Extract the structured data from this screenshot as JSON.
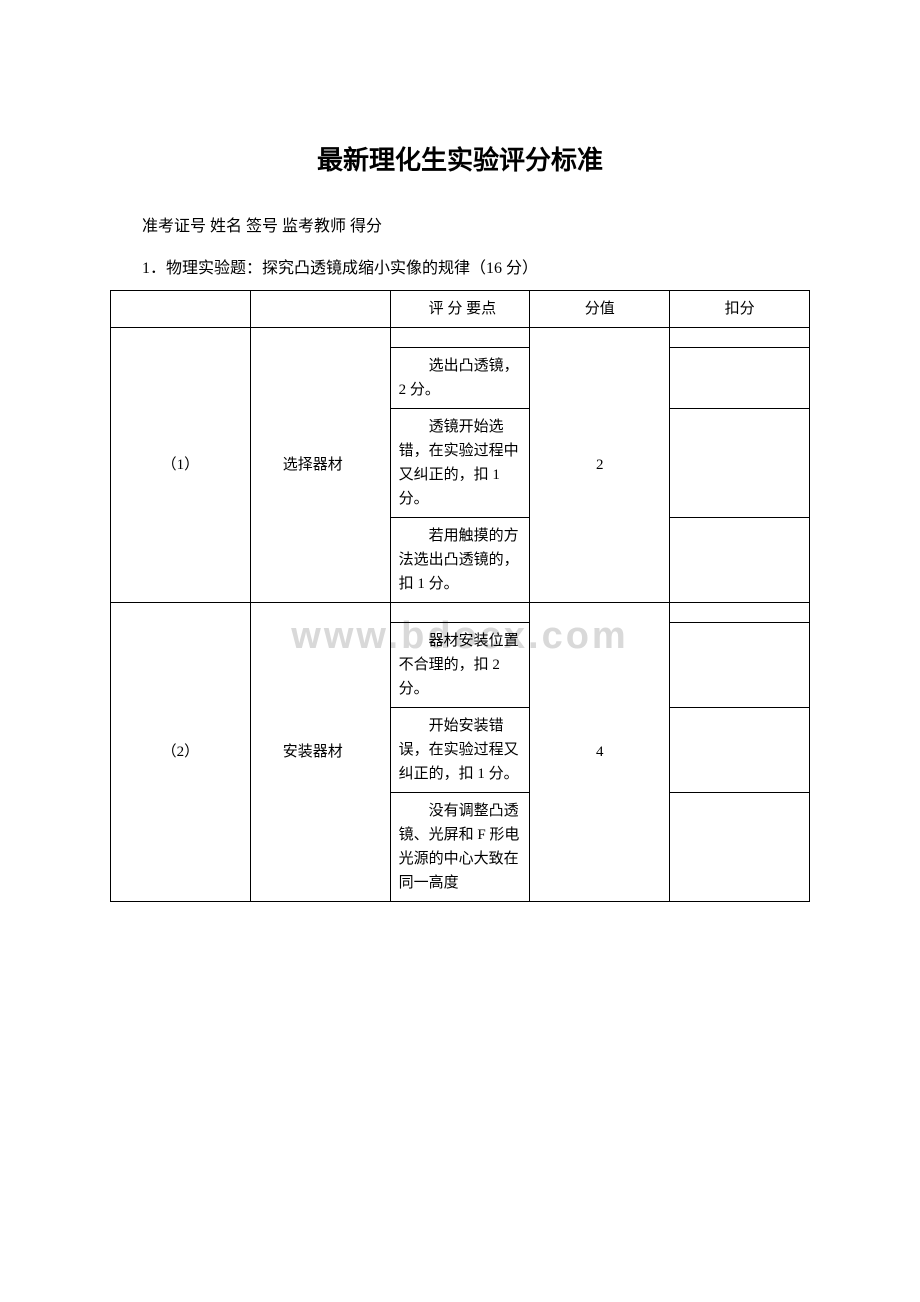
{
  "page": {
    "title": "最新理化生实验评分标准",
    "info_line": "准考证号 姓名 签号 监考教师 得分",
    "subtitle": "1．物理实验题：探究凸透镜成缩小实像的规律（16 分）",
    "watermark": "www.bdocx.com"
  },
  "table": {
    "header": {
      "col3": "评 分 要点",
      "col4": "分值",
      "col5": "扣分"
    },
    "rows": {
      "g1": {
        "num": "（1）",
        "label": "选择器材",
        "score": "2",
        "r1": "选出凸透镜，2 分。",
        "r2": "透镜开始选错，在实验过程中又纠正的，扣 1 分。",
        "r3": "若用触摸的方法选出凸透镜的，扣 1 分。"
      },
      "g2": {
        "num": "（2）",
        "label": "安装器材",
        "score": "4",
        "r1": "器材安装位置不合理的，扣 2分。",
        "r2": "开始安装错误，在实验过程又纠正的，扣 1 分。",
        "r3": "没有调整凸透镜、光屏和 F 形电光源的中心大致在同一高度"
      }
    }
  },
  "style": {
    "colors": {
      "background": "#ffffff",
      "text": "#000000",
      "border": "#000000",
      "watermark": "#d9d9d9"
    }
  }
}
